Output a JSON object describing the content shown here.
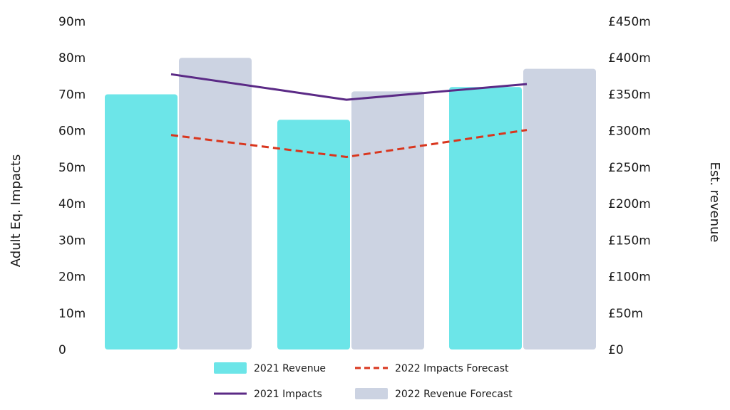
{
  "chart_data": {
    "type": "bar",
    "categories": [
      "",
      "",
      ""
    ],
    "series": [
      {
        "name": "2021 Revenue",
        "kind": "bar",
        "axis": "right",
        "color": "#6ce5e8",
        "values": [
          350,
          315,
          360
        ]
      },
      {
        "name": "2022 Revenue Forecast",
        "kind": "bar",
        "axis": "right",
        "color": "#ccd3e2",
        "values": [
          400,
          354,
          385
        ]
      },
      {
        "name": "2021 Impacts",
        "kind": "line",
        "style": "solid",
        "axis": "left",
        "color": "#5b2a86",
        "values": [
          75.5,
          68.5,
          72.8
        ]
      },
      {
        "name": "2022 Impacts Forecast",
        "kind": "line",
        "style": "dashed",
        "axis": "left",
        "color": "#d9361e",
        "values": [
          58.8,
          52.8,
          60.2
        ]
      }
    ],
    "y_left": {
      "label": "Adult Eq. Impacts",
      "ylim": [
        0,
        90
      ],
      "ticks": [
        {
          "v": 0,
          "t": "0"
        },
        {
          "v": 10,
          "t": "10m"
        },
        {
          "v": 20,
          "t": "20m"
        },
        {
          "v": 30,
          "t": "30m"
        },
        {
          "v": 40,
          "t": "40m"
        },
        {
          "v": 50,
          "t": "50m"
        },
        {
          "v": 60,
          "t": "60m"
        },
        {
          "v": 70,
          "t": "70m"
        },
        {
          "v": 80,
          "t": "80m"
        },
        {
          "v": 90,
          "t": "90m"
        }
      ]
    },
    "y_right": {
      "label": "Est. revenue",
      "ylim": [
        0,
        450
      ],
      "ticks": [
        {
          "v": 0,
          "t": "£0"
        },
        {
          "v": 50,
          "t": "£50m"
        },
        {
          "v": 100,
          "t": "£100m"
        },
        {
          "v": 150,
          "t": "£150m"
        },
        {
          "v": 200,
          "t": "£200m"
        },
        {
          "v": 250,
          "t": "£250m"
        },
        {
          "v": 300,
          "t": "£300m"
        },
        {
          "v": 350,
          "t": "£350m"
        },
        {
          "v": 400,
          "t": "£400m"
        },
        {
          "v": 450,
          "t": "£450m"
        }
      ]
    },
    "legend": {
      "position": "bottom",
      "order": [
        "2021 Revenue",
        "2022 Impacts Forecast",
        "2021 Impacts",
        "2022 Revenue Forecast"
      ]
    },
    "grid": false
  }
}
